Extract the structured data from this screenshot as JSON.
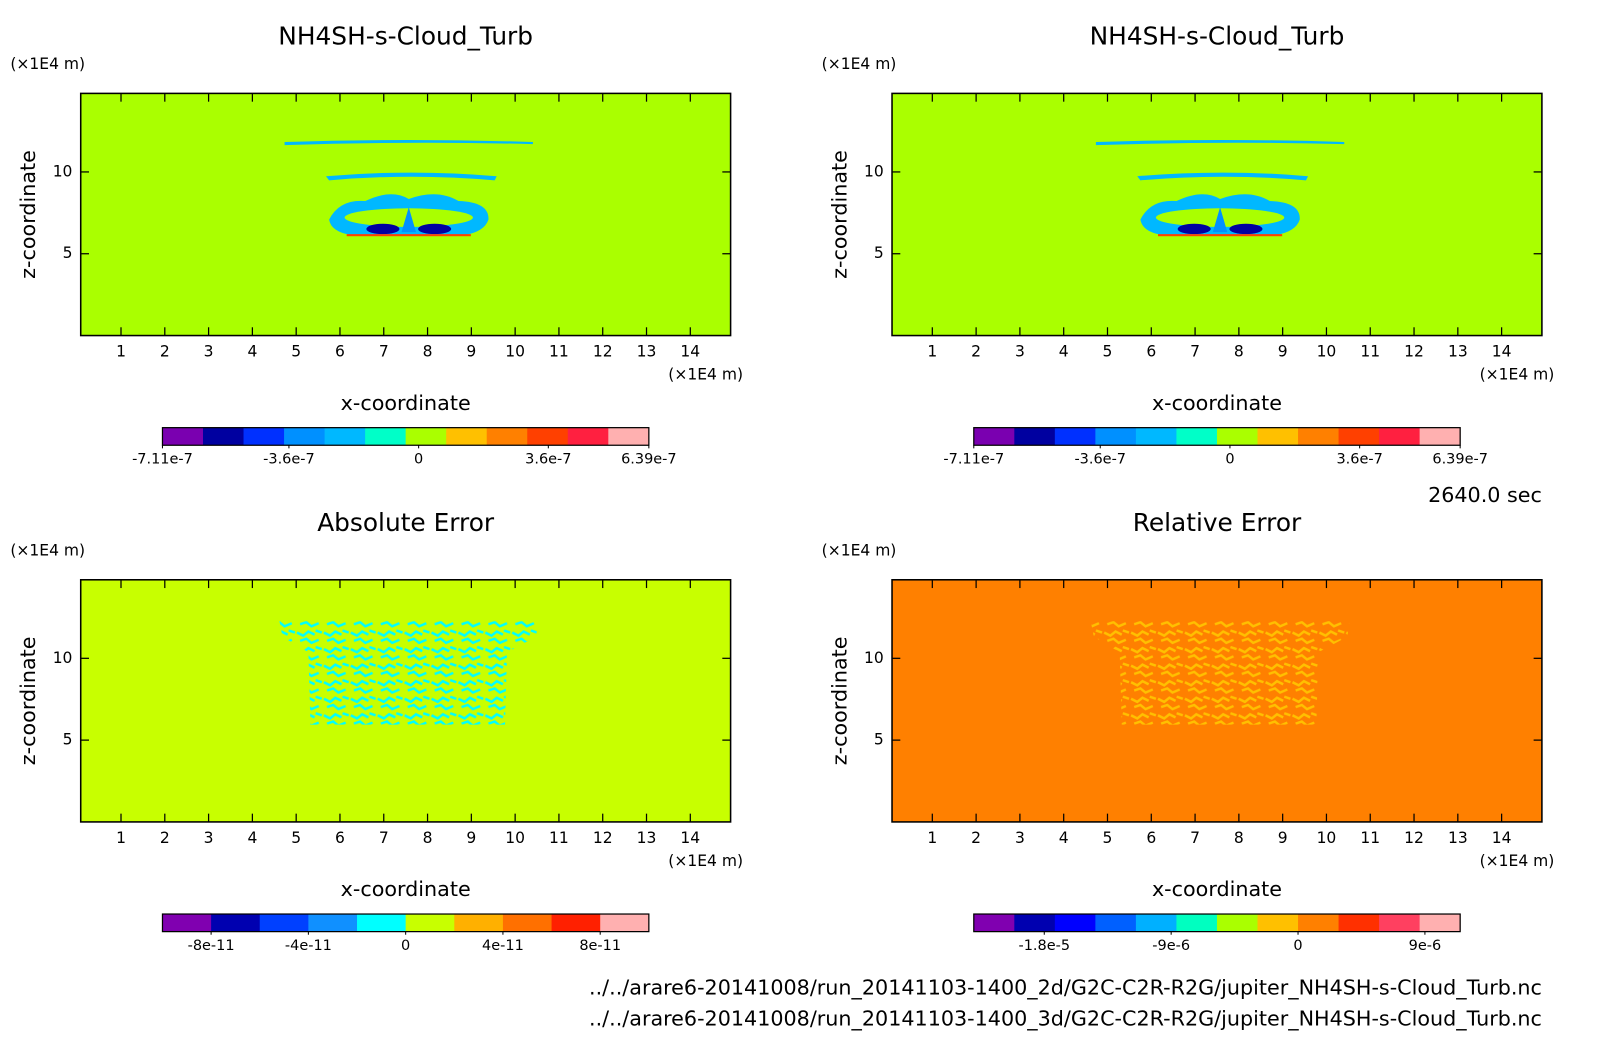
{
  "chart_data": [
    {
      "type": "contour",
      "title": "NH4SH-s-Cloud_Turb",
      "xlabel": "x-coordinate",
      "ylabel": "z-coordinate",
      "x_unit": "(×1E4 m)",
      "y_unit": "(×1E4 m)",
      "xlim": [
        0.08,
        14.92
      ],
      "ylim": [
        0,
        14.8
      ],
      "xticks": [
        1,
        2,
        3,
        4,
        5,
        6,
        7,
        8,
        9,
        10,
        11,
        12,
        13,
        14
      ],
      "yticks": [
        5,
        10
      ],
      "field_color": "#aaff00",
      "colorbar": {
        "colors": [
          "#7a00b0",
          "#0000a0",
          "#0030ff",
          "#0090ff",
          "#00b8ff",
          "#00ffc8",
          "#aaff00",
          "#ffc000",
          "#ff8000",
          "#ff4000",
          "#ff2040",
          "#ffb0b0"
        ],
        "lim": [
          -7.11e-07,
          6.39e-07
        ],
        "ticks": [
          {
            "value": -7.11e-07,
            "label": "-7.11e-7"
          },
          {
            "value": -3.6e-07,
            "label": "-3.6e-7"
          },
          {
            "value": 0,
            "label": "0"
          },
          {
            "value": 3.6e-07,
            "label": "3.6e-7"
          },
          {
            "value": 6.39e-07,
            "label": "6.39e-7"
          }
        ]
      }
    },
    {
      "type": "contour",
      "title": "NH4SH-s-Cloud_Turb",
      "xlabel": "x-coordinate",
      "ylabel": "z-coordinate",
      "x_unit": "(×1E4 m)",
      "y_unit": "(×1E4 m)",
      "xlim": [
        0.08,
        14.92
      ],
      "ylim": [
        0,
        14.8
      ],
      "xticks": [
        1,
        2,
        3,
        4,
        5,
        6,
        7,
        8,
        9,
        10,
        11,
        12,
        13,
        14
      ],
      "yticks": [
        5,
        10
      ],
      "field_color": "#aaff00",
      "colorbar": {
        "colors": [
          "#7a00b0",
          "#0000a0",
          "#0030ff",
          "#0090ff",
          "#00b8ff",
          "#00ffc8",
          "#aaff00",
          "#ffc000",
          "#ff8000",
          "#ff4000",
          "#ff2040",
          "#ffb0b0"
        ],
        "lim": [
          -7.11e-07,
          6.39e-07
        ],
        "ticks": [
          {
            "value": -7.11e-07,
            "label": "-7.11e-7"
          },
          {
            "value": -3.6e-07,
            "label": "-3.6e-7"
          },
          {
            "value": 0,
            "label": "0"
          },
          {
            "value": 3.6e-07,
            "label": "3.6e-7"
          },
          {
            "value": 6.39e-07,
            "label": "6.39e-7"
          }
        ]
      }
    },
    {
      "type": "contour",
      "title": "Absolute Error",
      "xlabel": "x-coordinate",
      "ylabel": "z-coordinate",
      "x_unit": "(×1E4 m)",
      "y_unit": "(×1E4 m)",
      "xlim": [
        0.08,
        14.92
      ],
      "ylim": [
        0,
        14.8
      ],
      "xticks": [
        1,
        2,
        3,
        4,
        5,
        6,
        7,
        8,
        9,
        10,
        11,
        12,
        13,
        14
      ],
      "yticks": [
        5,
        10
      ],
      "field_color": "#c8ff00",
      "colorbar": {
        "colors": [
          "#8000b0",
          "#0000b0",
          "#0040ff",
          "#1090ff",
          "#00ffff",
          "#c8ff00",
          "#ffb000",
          "#ff7000",
          "#ff2000",
          "#ffb0b0"
        ],
        "lim": [
          -1e-10,
          1e-10
        ],
        "ticks": [
          {
            "value": -8e-11,
            "label": "-8e-11"
          },
          {
            "value": -4e-11,
            "label": "-4e-11"
          },
          {
            "value": 0,
            "label": "0"
          },
          {
            "value": 4e-11,
            "label": "4e-11"
          },
          {
            "value": 8e-11,
            "label": "8e-11"
          }
        ]
      }
    },
    {
      "type": "contour",
      "title": "Relative Error",
      "xlabel": "x-coordinate",
      "ylabel": "z-coordinate",
      "x_unit": "(×1E4 m)",
      "y_unit": "(×1E4 m)",
      "xlim": [
        0.08,
        14.92
      ],
      "ylim": [
        0,
        14.8
      ],
      "xticks": [
        1,
        2,
        3,
        4,
        5,
        6,
        7,
        8,
        9,
        10,
        11,
        12,
        13,
        14
      ],
      "yticks": [
        5,
        10
      ],
      "field_color": "#ff8000",
      "colorbar": {
        "colors": [
          "#8000b0",
          "#0000b0",
          "#0000ff",
          "#0060ff",
          "#00b0ff",
          "#00ffc0",
          "#aaff00",
          "#ffc000",
          "#ff8000",
          "#ff3000",
          "#ff4060",
          "#ffb0b0"
        ],
        "lim": [
          -2.3e-05,
          1.15e-05
        ],
        "ticks": [
          {
            "value": -1.8e-05,
            "label": "-1.8e-5"
          },
          {
            "value": -9e-06,
            "label": "-9e-6"
          },
          {
            "value": 0,
            "label": "0"
          },
          {
            "value": 9e-06,
            "label": "9e-6"
          }
        ]
      }
    }
  ],
  "footer": {
    "time": "2640.0 sec",
    "files": [
      "../../arare6-20141008/run_20141103-1400_2d/G2C-C2R-R2G/jupiter_NH4SH-s-Cloud_Turb.nc",
      "../../arare6-20141008/run_20141103-1400_3d/G2C-C2R-R2G/jupiter_NH4SH-s-Cloud_Turb.nc"
    ]
  }
}
